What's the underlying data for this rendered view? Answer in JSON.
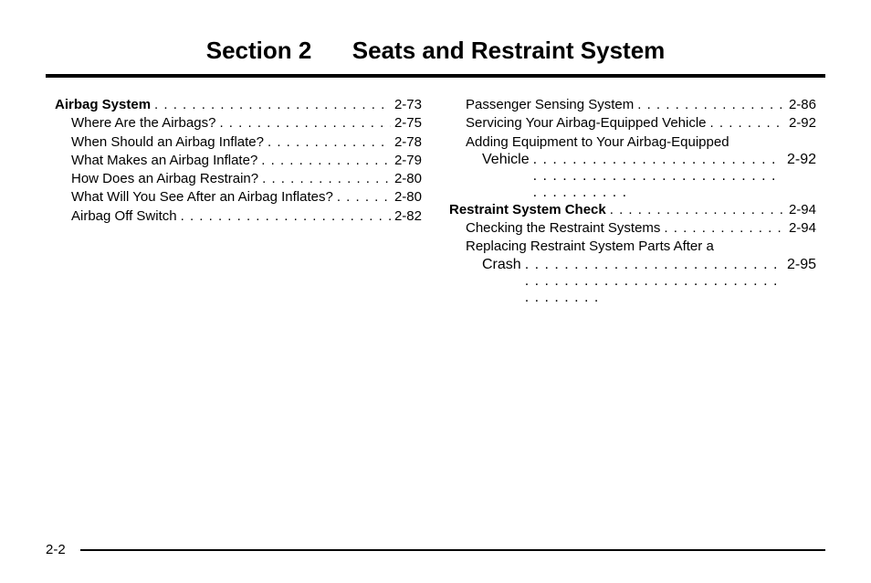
{
  "title_left": "Section 2",
  "title_right": "Seats and Restraint System",
  "footer_page": "2-2",
  "left_col": [
    {
      "text": "Airbag System",
      "page": "2-73",
      "bold": true,
      "indent": 0
    },
    {
      "text": "Where Are the Airbags?",
      "page": "2-75",
      "bold": false,
      "indent": 1
    },
    {
      "text": "When Should an Airbag Inflate?",
      "page": "2-78",
      "bold": false,
      "indent": 1
    },
    {
      "text": "What Makes an Airbag Inflate?",
      "page": "2-79",
      "bold": false,
      "indent": 1
    },
    {
      "text": "How Does an Airbag Restrain?",
      "page": "2-80",
      "bold": false,
      "indent": 1
    },
    {
      "text": "What Will You See After an Airbag Inflates?",
      "page": "2-80",
      "bold": false,
      "indent": 1
    },
    {
      "text": "Airbag Off Switch",
      "page": "2-82",
      "bold": false,
      "indent": 1
    }
  ],
  "right_col": [
    {
      "text": "Passenger Sensing System",
      "page": "2-86",
      "bold": false,
      "indent": 1
    },
    {
      "text": "Servicing Your Airbag-Equipped Vehicle",
      "page": "2-92",
      "bold": false,
      "indent": 1
    },
    {
      "wrap": true,
      "first": "Adding Equipment to Your Airbag-Equipped",
      "cont": "Vehicle",
      "page": "2-92",
      "bold": false
    },
    {
      "text": "Restraint System Check",
      "page": "2-94",
      "bold": true,
      "indent": 0
    },
    {
      "text": "Checking the Restraint Systems",
      "page": "2-94",
      "bold": false,
      "indent": 1
    },
    {
      "wrap": true,
      "first": "Replacing Restraint System Parts After a",
      "cont": "Crash",
      "page": "2-95",
      "bold": false
    }
  ]
}
